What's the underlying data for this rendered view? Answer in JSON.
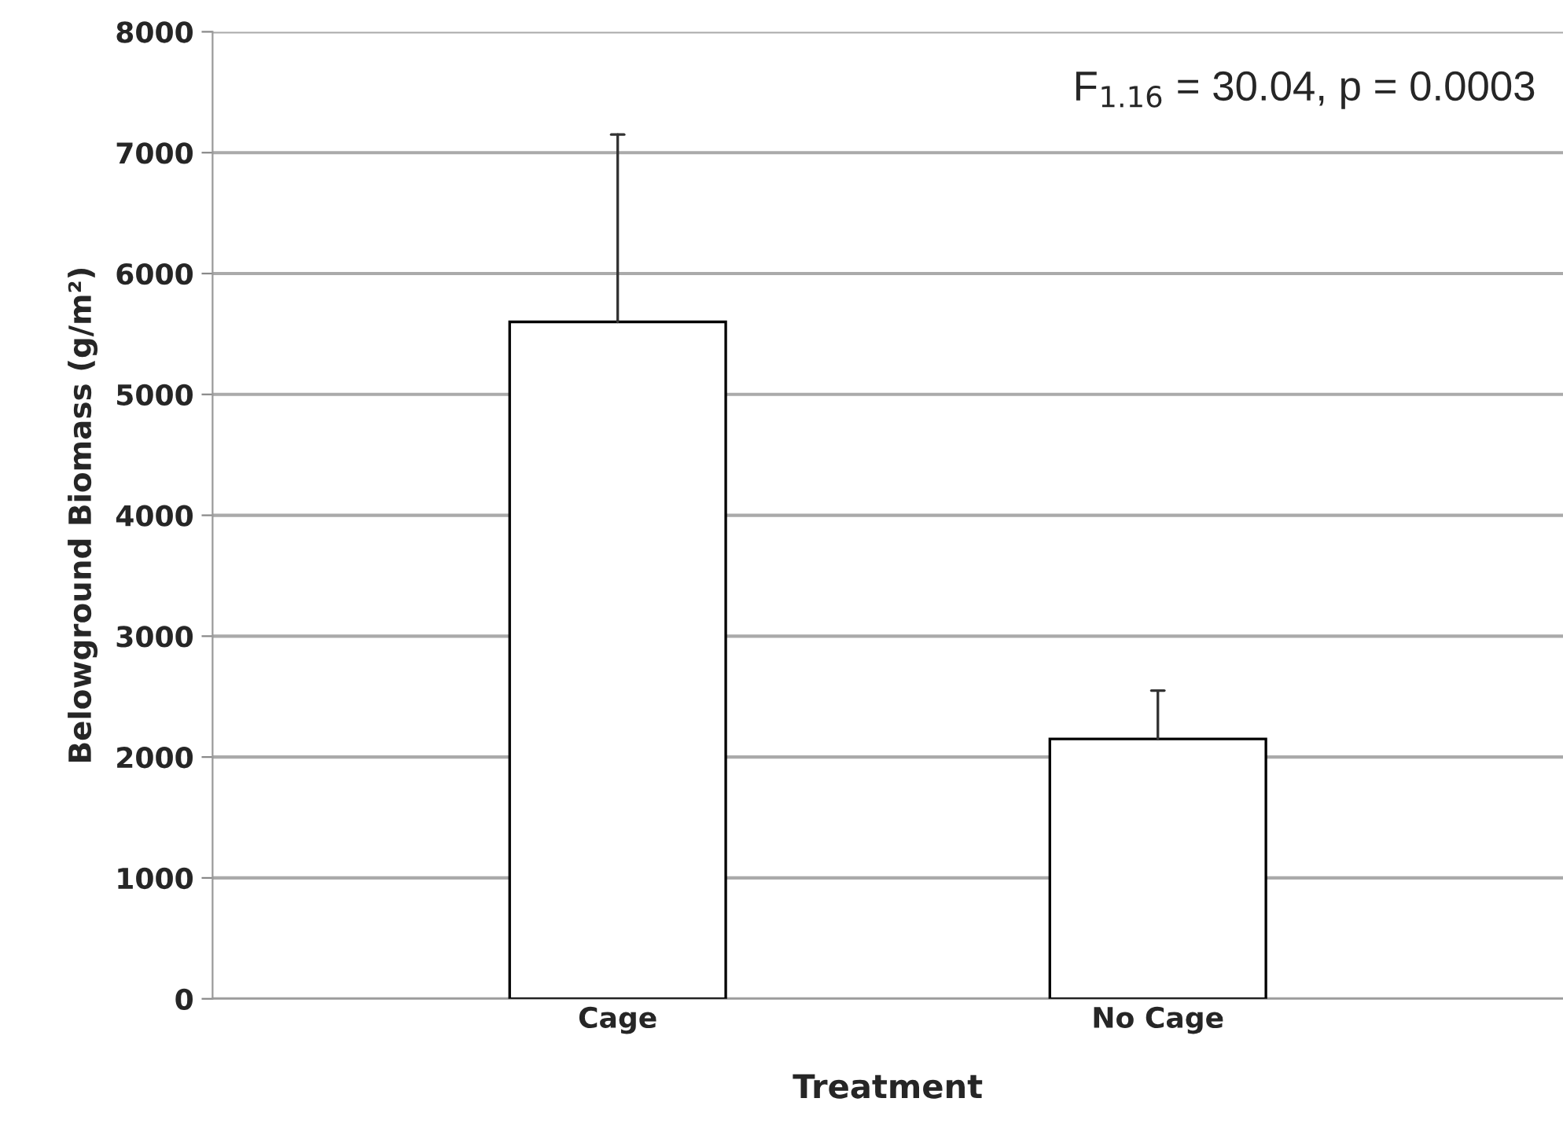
{
  "chart_data": {
    "type": "bar",
    "xlabel": "Treatment",
    "ylabel": "Belowground Biomass (g/m²)",
    "categories": [
      "Cage",
      "No Cage"
    ],
    "values": [
      5600,
      2150
    ],
    "errors": [
      [
        5600,
        7150
      ],
      [
        2150,
        2550
      ]
    ],
    "color": "#ffffff",
    "ylim": [
      0,
      8000
    ],
    "yticks": [
      0,
      1000,
      2000,
      3000,
      4000,
      5000,
      6000,
      7000,
      8000
    ],
    "grid": "y",
    "annotations": [
      "F$_{1.16}$ = 30.04, p = 0.0003"
    ]
  }
}
